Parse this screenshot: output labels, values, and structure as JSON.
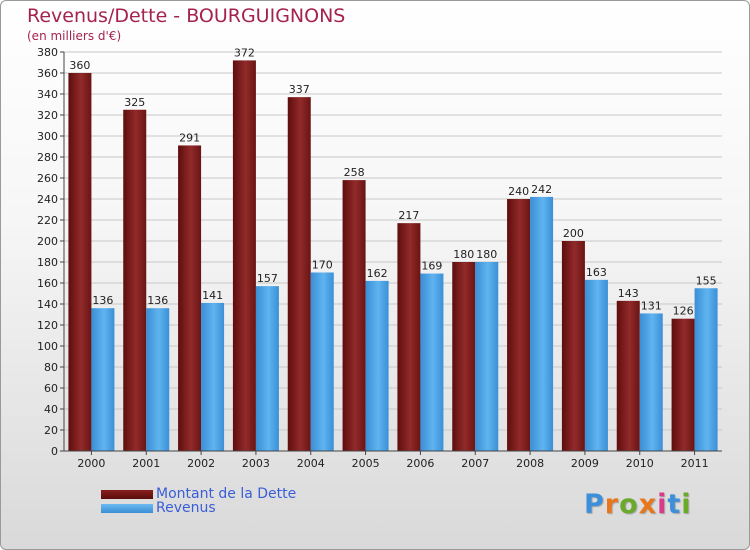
{
  "chart_data": {
    "type": "bar",
    "title": "Revenus/Dette - BOURGUIGNONS",
    "subtitle": "(en milliers d'€)",
    "xlabel": "",
    "ylabel": "",
    "ylim": [
      0,
      380
    ],
    "ytick_step": 20,
    "yticks": [
      "0",
      "20",
      "40",
      "60",
      "80",
      "100",
      "120",
      "140",
      "160",
      "180",
      "200",
      "220",
      "240",
      "260",
      "280",
      "300",
      "320",
      "340",
      "360",
      "380"
    ],
    "categories": [
      "2000",
      "2001",
      "2002",
      "2003",
      "2004",
      "2005",
      "2006",
      "2007",
      "2008",
      "2009",
      "2010",
      "2011"
    ],
    "grid": true,
    "legend_position": "bottom-left",
    "series": [
      {
        "name": "Montant de la Dette",
        "color": "#7a1a1a",
        "values": [
          360,
          325,
          291,
          372,
          337,
          258,
          217,
          180,
          240,
          200,
          143,
          126
        ],
        "labels": [
          "360",
          "325",
          "291",
          "372",
          "337",
          "258",
          "217",
          "180",
          "240",
          "200",
          "143",
          "126"
        ]
      },
      {
        "name": "Revenus",
        "color": "#4aa3e6",
        "values": [
          136,
          136,
          141,
          157,
          170,
          162,
          169,
          180,
          242,
          163,
          131,
          155
        ],
        "labels": [
          "136",
          "136",
          "141",
          "157",
          "170",
          "162",
          "169",
          "180",
          "242",
          "163",
          "131",
          "155"
        ]
      }
    ]
  },
  "logo": {
    "letters": [
      "P",
      "r",
      "o",
      "x",
      "i",
      "t",
      "i"
    ],
    "colors": [
      "#3c8fd8",
      "#e8771b",
      "#6aaa2a",
      "#e8771b",
      "#d93a8a",
      "#3c8fd8",
      "#6aaa2a"
    ]
  }
}
